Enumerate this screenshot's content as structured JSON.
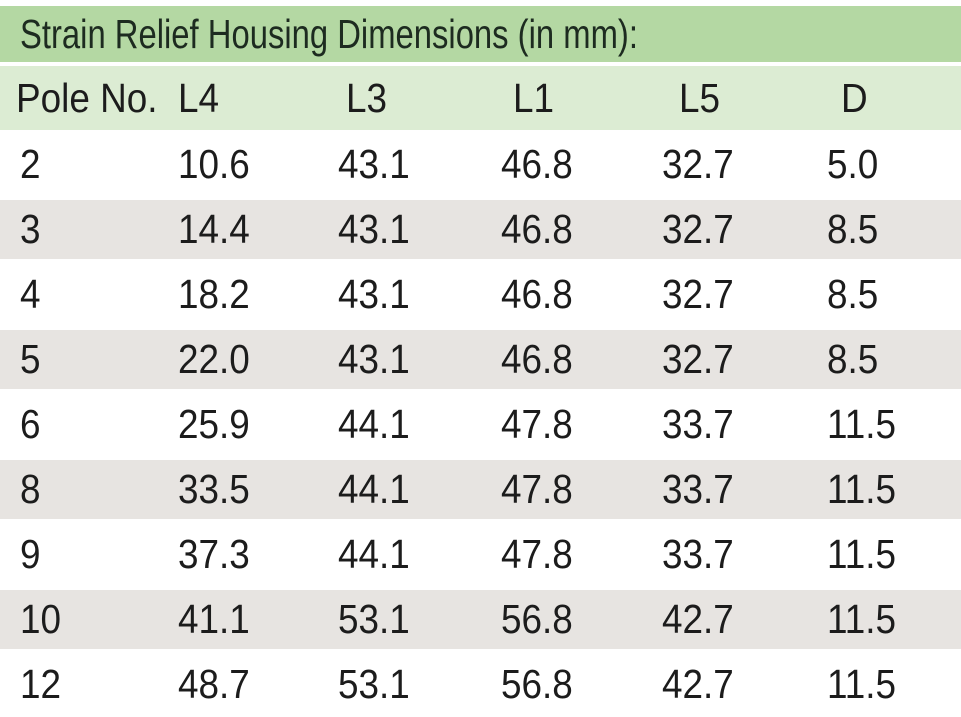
{
  "table": {
    "title": "Strain Relief Housing Dimensions (in mm):",
    "columns": [
      "Pole No.",
      "L4",
      "L3",
      "L1",
      "L5",
      "D"
    ],
    "rows": [
      [
        "2",
        "10.6",
        "43.1",
        "46.8",
        "32.7",
        "5.0"
      ],
      [
        "3",
        "14.4",
        "43.1",
        "46.8",
        "32.7",
        "8.5"
      ],
      [
        "4",
        "18.2",
        "43.1",
        "46.8",
        "32.7",
        "8.5"
      ],
      [
        "5",
        "22.0",
        "43.1",
        "46.8",
        "32.7",
        "8.5"
      ],
      [
        "6",
        "25.9",
        "44.1",
        "47.8",
        "33.7",
        "11.5"
      ],
      [
        "8",
        "33.5",
        "44.1",
        "47.8",
        "33.7",
        "11.5"
      ],
      [
        "9",
        "37.3",
        "44.1",
        "47.8",
        "33.7",
        "11.5"
      ],
      [
        "10",
        "41.1",
        "53.1",
        "56.8",
        "42.7",
        "11.5"
      ],
      [
        "12",
        "48.7",
        "53.1",
        "56.8",
        "42.7",
        "11.5"
      ]
    ],
    "colors": {
      "title_bar_bg": "#b4d8a3",
      "title_text": "#1d2b20",
      "header_bg": "#dcecd3",
      "row_bg": "#ffffff",
      "row_alt_bg": "#e7e4e1",
      "body_text": "#1c1c1c"
    }
  }
}
